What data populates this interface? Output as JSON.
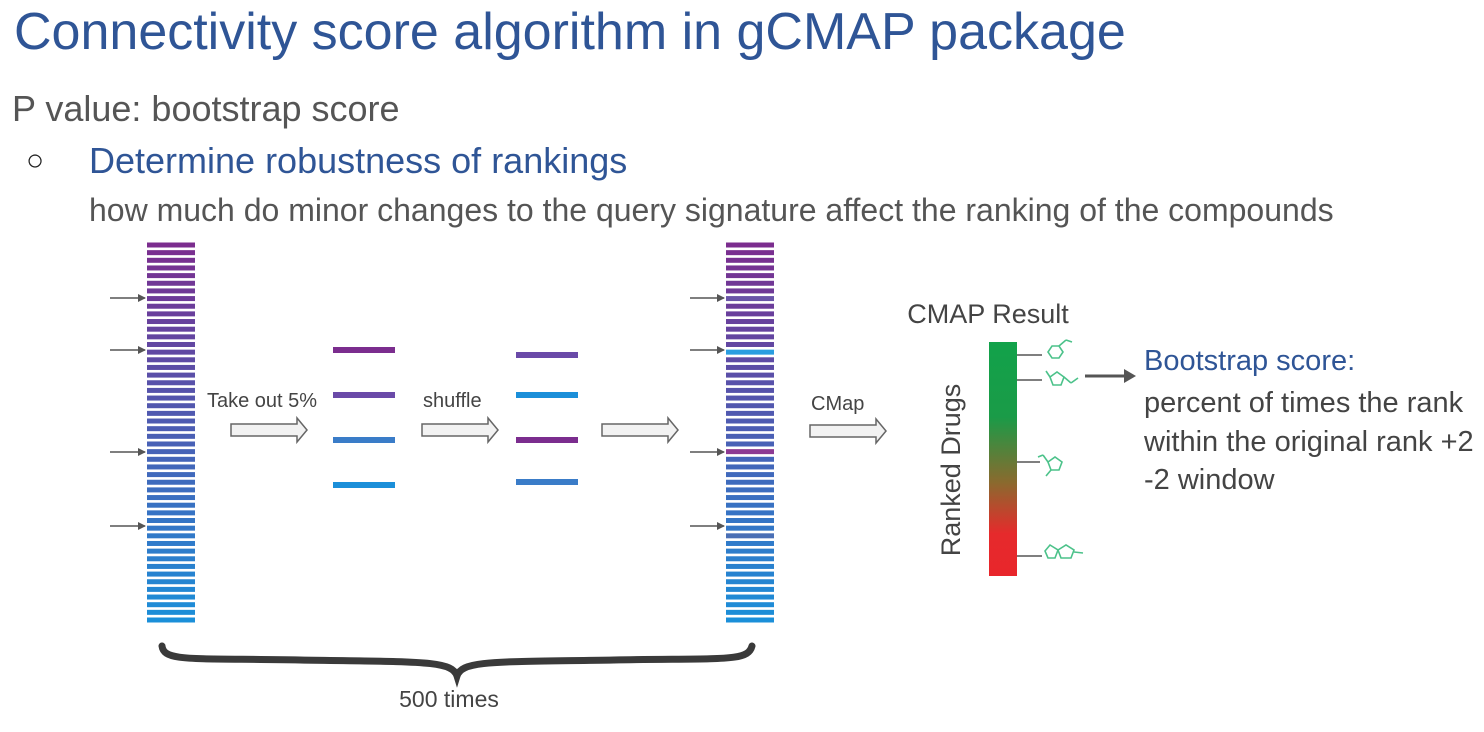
{
  "slide": {
    "title": "Connectivity score algorithm in gCMAP package",
    "subheading": "P value: bootstrap score",
    "bullet_marker": "○",
    "point": "Determine robustness of rankings",
    "description": "how much do minor changes to the query signature affect the ranking of the compounds"
  },
  "diagram": {
    "step1_label": "Take out 5%",
    "step2_label": "shuffle",
    "step3_label": "CMap",
    "repeat_label": "500 times",
    "result_title": "CMAP Result",
    "ranked_axis_label": "Ranked Drugs",
    "score_title": "Bootstrap score:",
    "score_text": "percent of times the rank within the original rank +2 -2 window",
    "colors": {
      "title_blue": "#2f5596",
      "purple": "#7b2d8e",
      "blue": "#1b8fd9",
      "green": "#13a84d",
      "red": "#e8262b"
    }
  }
}
